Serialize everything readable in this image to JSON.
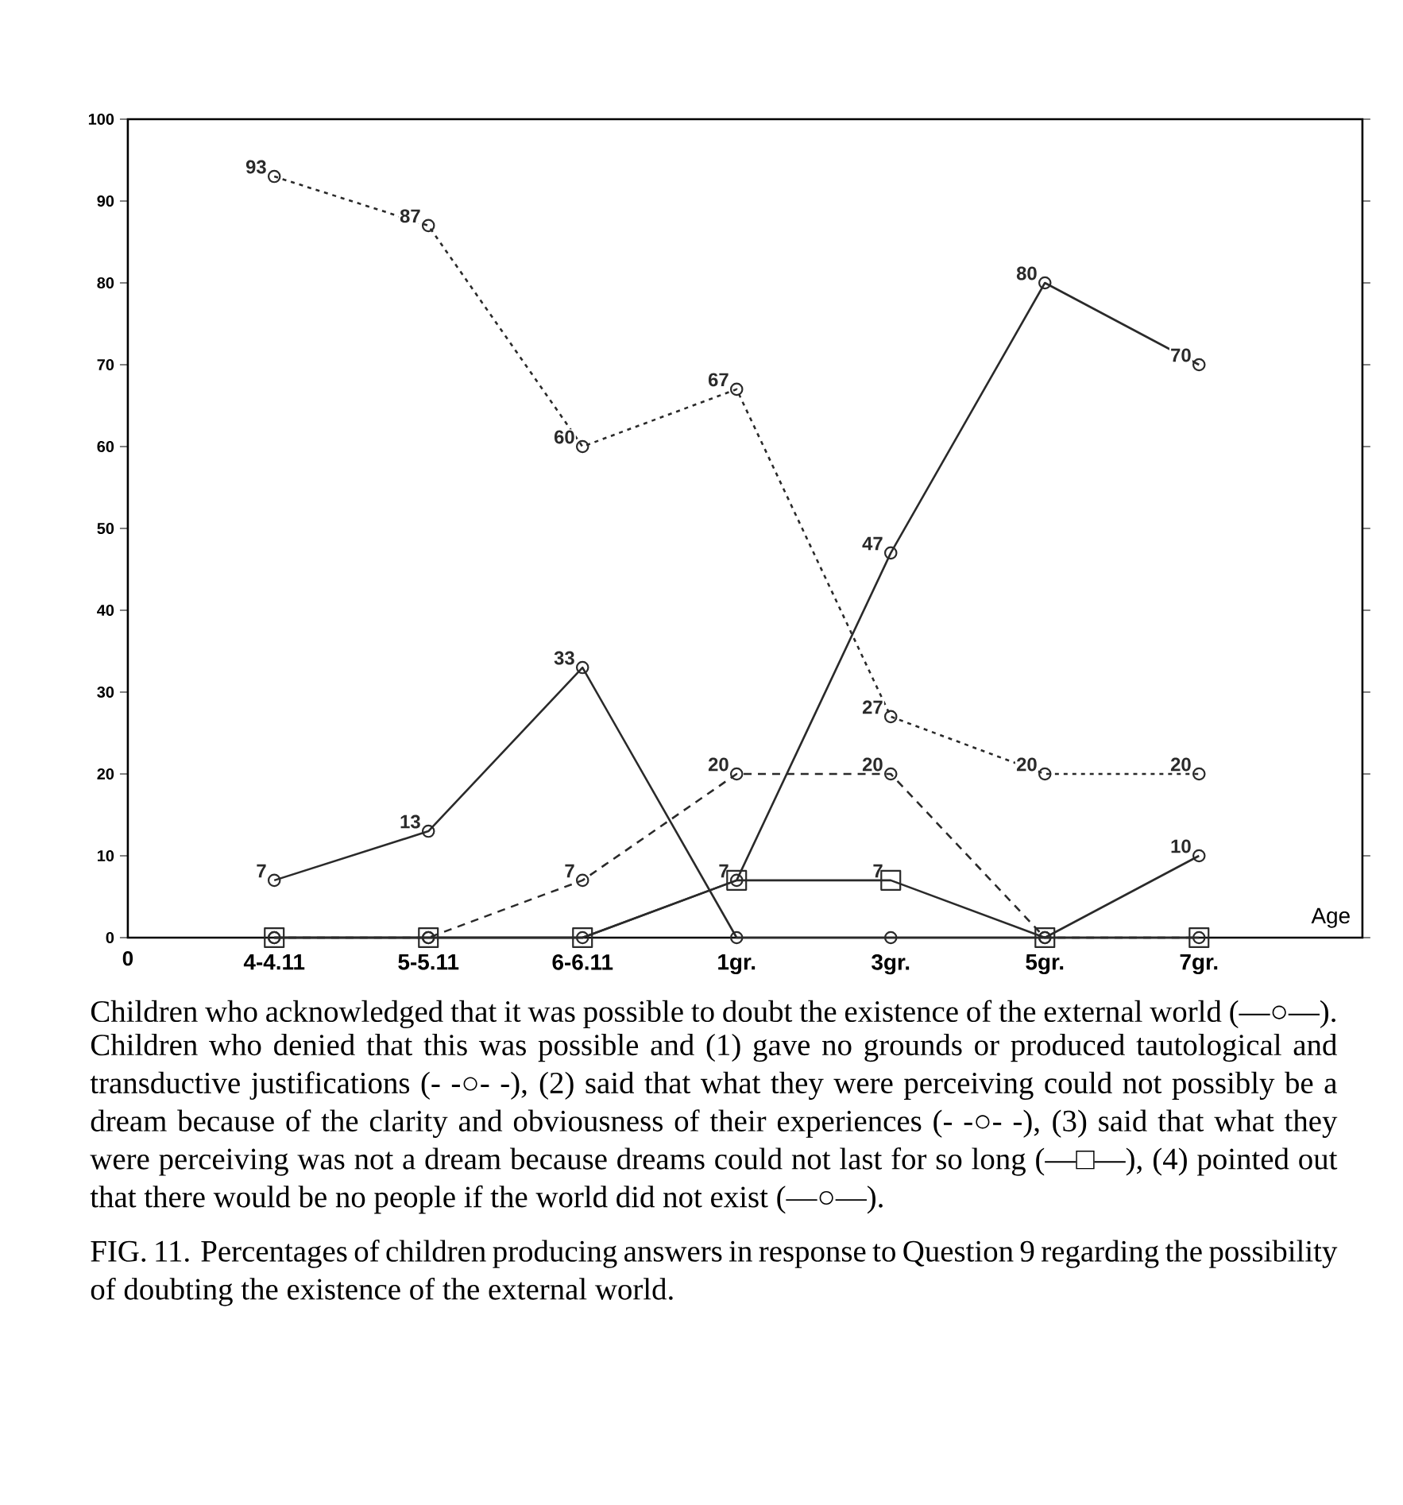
{
  "chart_data": {
    "type": "line",
    "categories": [
      "4-4.11",
      "5-5.11",
      "6-6.11",
      "1gr.",
      "3gr.",
      "5gr.",
      "7gr."
    ],
    "xlabel": "Age",
    "ylim": [
      0,
      100
    ],
    "yticks": [
      0,
      10,
      20,
      30,
      40,
      50,
      60,
      70,
      80,
      90,
      100
    ],
    "grid": false,
    "series": [
      {
        "color": "#2a2a2a",
        "marker": "circle",
        "line_style": "solid",
        "values": [
          7,
          13,
          33,
          0,
          0,
          0,
          10
        ],
        "value_labels": [
          "7",
          "13",
          "33",
          null,
          null,
          null,
          "10"
        ]
      },
      {
        "color": "#2a2a2a",
        "marker": "circle",
        "line_style": "dotted",
        "values": [
          93,
          87,
          60,
          67,
          27,
          20,
          20
        ],
        "value_labels": [
          "93",
          "87",
          "60",
          "67",
          "27",
          "20",
          "20"
        ]
      },
      {
        "color": "#2a2a2a",
        "marker": "circle",
        "line_style": "dashed",
        "values": [
          0,
          0,
          7,
          20,
          20,
          0,
          0
        ],
        "value_labels": [
          null,
          null,
          "7",
          "20",
          "20",
          null,
          null
        ]
      },
      {
        "color": "#2a2a2a",
        "marker": "square",
        "line_style": "solid",
        "values": [
          0,
          0,
          0,
          7,
          7,
          0,
          0
        ],
        "value_labels": [
          null,
          null,
          null,
          "7",
          "7",
          null,
          null
        ]
      },
      {
        "color": "#2a2a2a",
        "marker": "circle",
        "line_style": "solid",
        "values": [
          0,
          0,
          0,
          7,
          47,
          80,
          70
        ],
        "value_labels": [
          null,
          null,
          null,
          null,
          "47",
          "80",
          "70"
        ]
      }
    ],
    "annotations": [
      "0",
      "Children who acknowledged that it was possible to doubt the existence of the external world (—○—).",
      "Children who denied that this was possible and (1) gave no grounds or produced tautological and transductive justifications (- -○- -), (2) said that what they were perceiving could not possibly be a dream because of the clarity and obviousness of their experiences (- -○- -), (3) said that what they were perceiving was not a dream because dreams could not last for so long (—□—), (4) pointed out that there would be no people if the world did not exist (—○—).",
      "FIG. 11.  Percentages of children producing answers in response to Question 9 regarding the possibility of doubting the existence of the external world."
    ]
  }
}
